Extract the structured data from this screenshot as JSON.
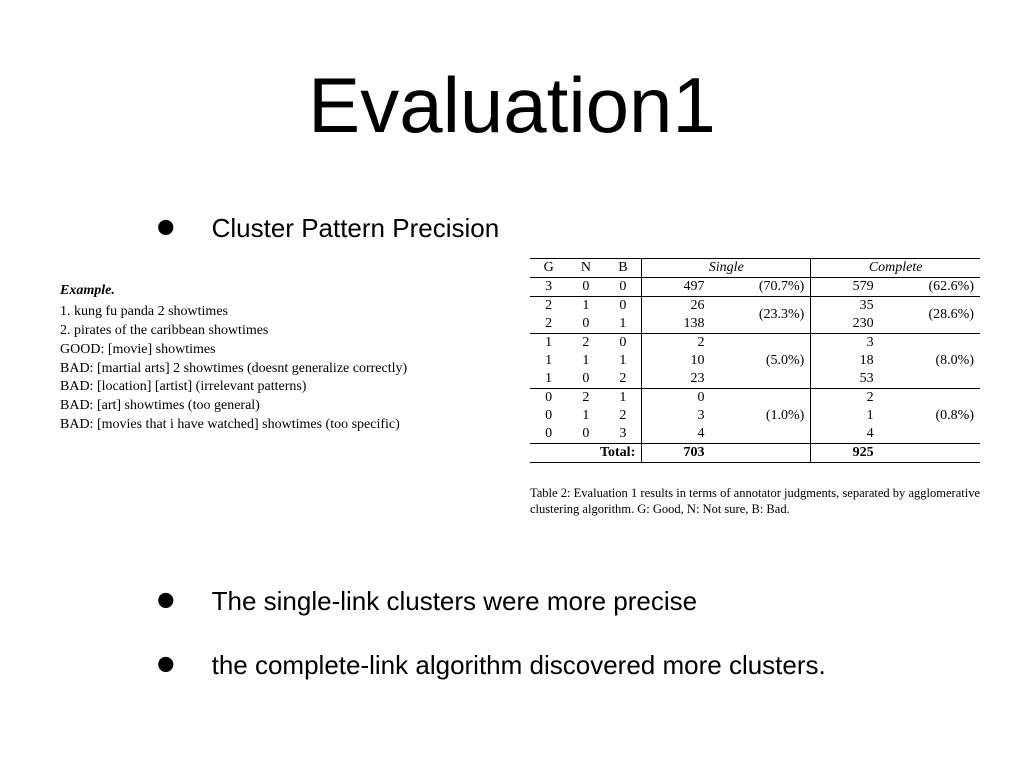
{
  "title": "Evaluation1",
  "bullets": {
    "b1": "Cluster Pattern Precision",
    "b2": "The single-link clusters were more precise",
    "b3": "the complete-link algorithm discovered more clusters."
  },
  "example": {
    "header": "Example.",
    "lines": [
      "1. kung fu panda 2 showtimes",
      "2. pirates of the caribbean showtimes",
      "GOOD: [movie] showtimes",
      "BAD: [martial arts] 2 showtimes (doesnt generalize correctly)",
      "BAD: [location] [artist] (irrelevant patterns)",
      "BAD: [art] showtimes (too general)",
      "BAD: [movies that i have watched] showtimes (too specific)"
    ]
  },
  "table": {
    "headers": {
      "g": "G",
      "n": "N",
      "b": "B",
      "single": "Single",
      "complete": "Complete"
    },
    "groups": [
      {
        "pct_single": "(70.7%)",
        "pct_complete": "(62.6%)",
        "rows": [
          {
            "g": "3",
            "n": "0",
            "b": "0",
            "sv": "497",
            "cv": "579"
          }
        ]
      },
      {
        "pct_single": "(23.3%)",
        "pct_complete": "(28.6%)",
        "rows": [
          {
            "g": "2",
            "n": "1",
            "b": "0",
            "sv": "26",
            "cv": "35"
          },
          {
            "g": "2",
            "n": "0",
            "b": "1",
            "sv": "138",
            "cv": "230"
          }
        ]
      },
      {
        "pct_single": "(5.0%)",
        "pct_complete": "(8.0%)",
        "rows": [
          {
            "g": "1",
            "n": "2",
            "b": "0",
            "sv": "2",
            "cv": "3"
          },
          {
            "g": "1",
            "n": "1",
            "b": "1",
            "sv": "10",
            "cv": "18"
          },
          {
            "g": "1",
            "n": "0",
            "b": "2",
            "sv": "23",
            "cv": "53"
          }
        ]
      },
      {
        "pct_single": "(1.0%)",
        "pct_complete": "(0.8%)",
        "rows": [
          {
            "g": "0",
            "n": "2",
            "b": "1",
            "sv": "0",
            "cv": "2"
          },
          {
            "g": "0",
            "n": "1",
            "b": "2",
            "sv": "3",
            "cv": "1"
          },
          {
            "g": "0",
            "n": "0",
            "b": "3",
            "sv": "4",
            "cv": "4"
          }
        ]
      }
    ],
    "total_label": "Total:",
    "total_single": "703",
    "total_complete": "925",
    "caption": "Table 2: Evaluation 1 results in terms of annotator judgments, separated by agglomerative clustering algorithm. G: Good, N: Not sure, B: Bad."
  },
  "style": {
    "title_fontsize": 78,
    "bullet_fontsize": 26,
    "example_fontsize": 14,
    "table_fontsize": 14,
    "caption_fontsize": 12.5,
    "background_color": "#ffffff",
    "text_color": "#000000",
    "rule_color": "#000000",
    "sans_font": "Arial",
    "serif_font": "Times New Roman"
  }
}
